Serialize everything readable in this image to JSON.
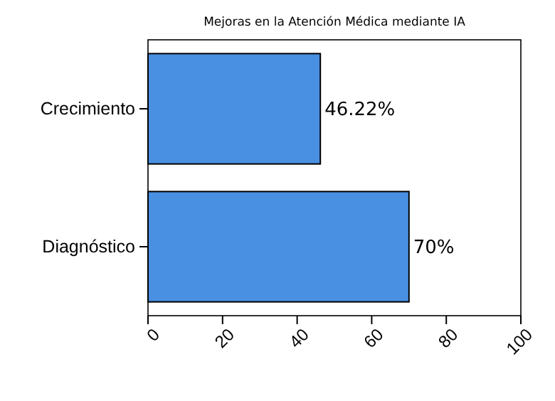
{
  "chart_data": {
    "type": "bar",
    "orientation": "horizontal",
    "title": "Mejoras en la Atención Médica mediante IA",
    "categories": [
      "Crecimiento",
      "Diagnóstico"
    ],
    "values": [
      46.22,
      70
    ],
    "value_labels": [
      "46.22%",
      "70%"
    ],
    "color": "#4a90e2",
    "xlim": [
      0,
      100
    ],
    "xticks": [
      0,
      20,
      40,
      60,
      80,
      100
    ],
    "grid": false
  }
}
